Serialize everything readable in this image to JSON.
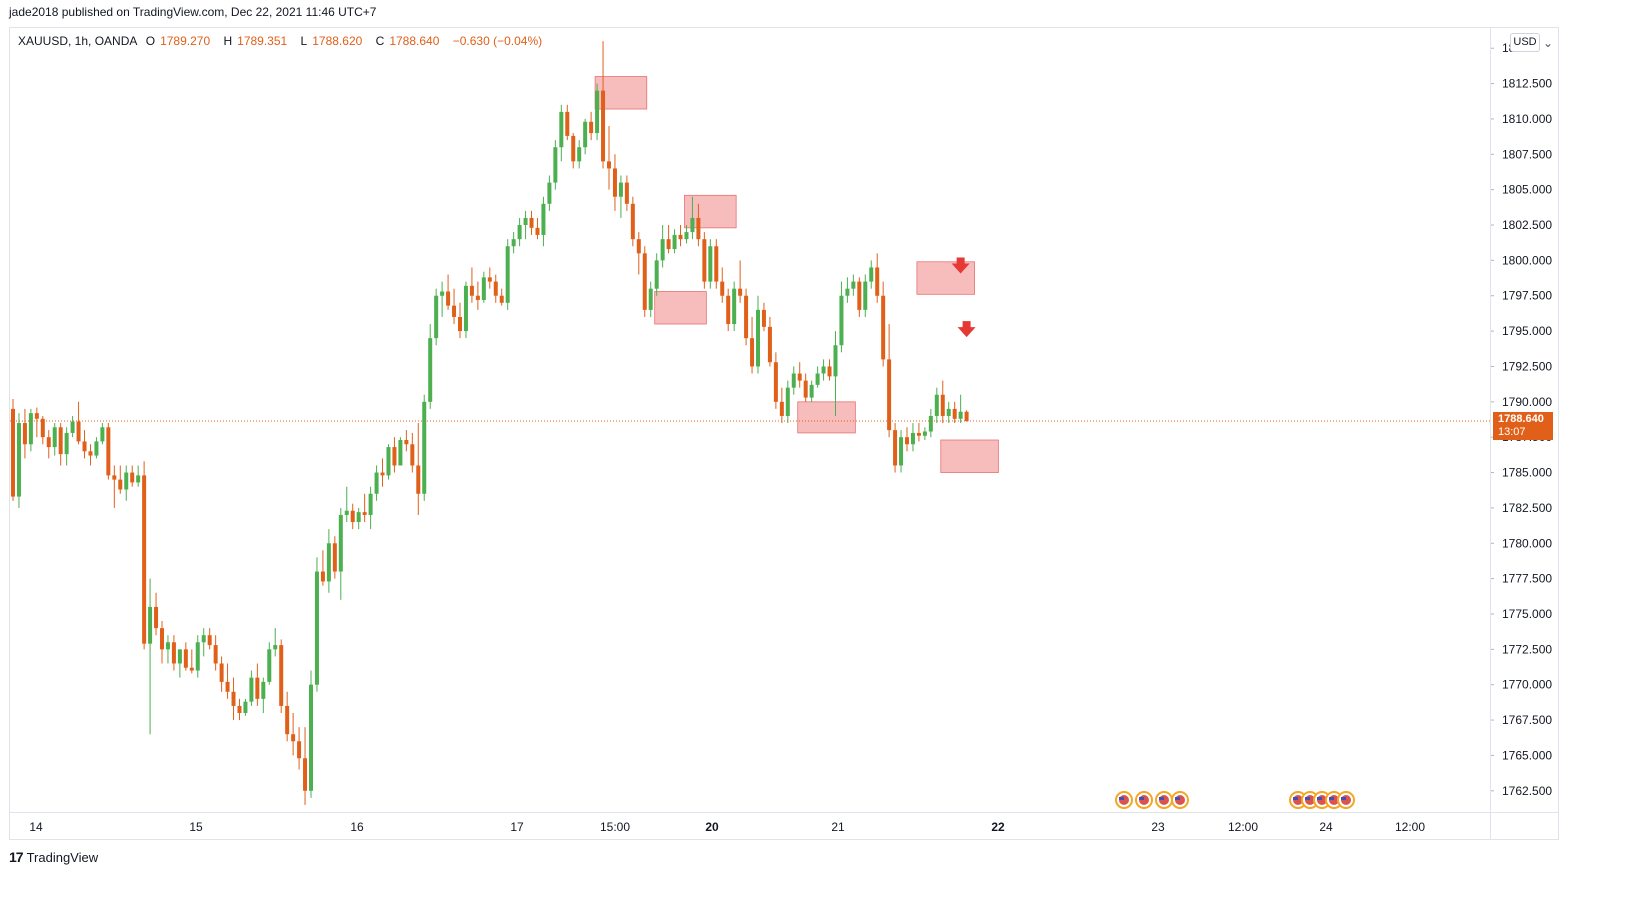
{
  "header": {
    "published": "jade2018 published on TradingView.com, Dec 22, 2021 11:46 UTC+7"
  },
  "legend": {
    "symbol": "XAUUSD, 1h, OANDA",
    "o_label": "O",
    "o_value": "1789.270",
    "h_label": "H",
    "h_value": "1789.351",
    "l_label": "L",
    "l_value": "1788.620",
    "c_label": "C",
    "c_value": "1788.640",
    "change": "−0.630 (−0.04%)"
  },
  "price_axis": {
    "currency": "USD",
    "last_price": "1788.640",
    "countdown": "13:07",
    "ticks": [
      "1762.500",
      "1765.000",
      "1767.500",
      "1770.000",
      "1772.500",
      "1775.000",
      "1777.500",
      "1780.000",
      "1782.500",
      "1785.000",
      "1787.500",
      "1790.000",
      "1792.500",
      "1795.000",
      "1797.500",
      "1800.000",
      "1802.500",
      "1805.000",
      "1807.500",
      "1810.000",
      "1812.500",
      "18"
    ]
  },
  "time_axis": {
    "ticks": [
      {
        "label": "14",
        "bold": false
      },
      {
        "label": "15",
        "bold": false
      },
      {
        "label": "16",
        "bold": false
      },
      {
        "label": "17",
        "bold": false
      },
      {
        "label": "15:00",
        "bold": false
      },
      {
        "label": "20",
        "bold": true
      },
      {
        "label": "21",
        "bold": false
      },
      {
        "label": "22",
        "bold": true
      },
      {
        "label": "23",
        "bold": false
      },
      {
        "label": "12:00",
        "bold": false
      },
      {
        "label": "24",
        "bold": false
      },
      {
        "label": "12:00",
        "bold": false
      }
    ]
  },
  "footer": {
    "brand": "TradingView",
    "logo_text": "17"
  },
  "colors": {
    "up": "#4caf50",
    "down": "#e0601a",
    "zone": "#f4a6a6",
    "zone_border": "#e57373",
    "arrow": "#e53935",
    "price_line": "#e0601a"
  },
  "chart_data": {
    "type": "candlestick",
    "symbol": "XAUUSD",
    "timeframe": "1h",
    "ylim": [
      1761.0,
      1816.5
    ],
    "candles": [
      [
        1789.5,
        1790.2,
        1783.0,
        1783.3
      ],
      [
        1783.3,
        1789.2,
        1782.5,
        1788.5
      ],
      [
        1788.5,
        1789.5,
        1786.0,
        1787.0
      ],
      [
        1787.0,
        1789.5,
        1786.5,
        1789.2
      ],
      [
        1789.2,
        1789.6,
        1787.5,
        1788.8
      ],
      [
        1788.8,
        1789.0,
        1787.0,
        1787.5
      ],
      [
        1787.5,
        1788.0,
        1786.0,
        1786.8
      ],
      [
        1786.8,
        1788.5,
        1786.2,
        1788.2
      ],
      [
        1788.2,
        1788.5,
        1785.5,
        1786.3
      ],
      [
        1786.3,
        1788.2,
        1785.5,
        1787.8
      ],
      [
        1787.8,
        1789.0,
        1787.5,
        1788.6
      ],
      [
        1788.6,
        1790.0,
        1787.0,
        1787.2
      ],
      [
        1787.2,
        1788.0,
        1786.0,
        1786.5
      ],
      [
        1786.5,
        1787.0,
        1785.5,
        1786.2
      ],
      [
        1786.2,
        1787.5,
        1786.0,
        1787.2
      ],
      [
        1787.2,
        1788.5,
        1787.0,
        1788.2
      ],
      [
        1788.2,
        1788.5,
        1784.5,
        1784.8
      ],
      [
        1784.8,
        1785.5,
        1782.5,
        1784.5
      ],
      [
        1784.5,
        1785.5,
        1783.5,
        1783.8
      ],
      [
        1783.8,
        1785.5,
        1783.0,
        1785.0
      ],
      [
        1785.0,
        1785.5,
        1784.0,
        1784.3
      ],
      [
        1784.3,
        1785.5,
        1784.0,
        1784.8
      ],
      [
        1784.8,
        1785.8,
        1772.5,
        1772.9
      ],
      [
        1772.9,
        1777.5,
        1766.5,
        1775.5
      ],
      [
        1775.5,
        1776.5,
        1773.5,
        1774.0
      ],
      [
        1774.0,
        1774.5,
        1771.5,
        1772.5
      ],
      [
        1772.5,
        1773.5,
        1771.5,
        1773.0
      ],
      [
        1773.0,
        1773.5,
        1771.0,
        1771.5
      ],
      [
        1771.5,
        1772.5,
        1770.5,
        1772.5
      ],
      [
        1772.5,
        1773.0,
        1771.0,
        1771.2
      ],
      [
        1771.2,
        1772.5,
        1770.8,
        1771.0
      ],
      [
        1771.0,
        1773.5,
        1770.5,
        1773.0
      ],
      [
        1773.0,
        1774.0,
        1772.0,
        1773.5
      ],
      [
        1773.5,
        1774.0,
        1772.5,
        1772.8
      ],
      [
        1772.8,
        1773.5,
        1771.0,
        1771.5
      ],
      [
        1771.5,
        1772.0,
        1769.5,
        1770.2
      ],
      [
        1770.2,
        1771.5,
        1769.0,
        1769.5
      ],
      [
        1769.5,
        1770.5,
        1767.5,
        1768.5
      ],
      [
        1768.5,
        1769.0,
        1767.5,
        1768.0
      ],
      [
        1768.0,
        1769.0,
        1767.8,
        1768.8
      ],
      [
        1768.8,
        1771.0,
        1768.5,
        1770.5
      ],
      [
        1770.5,
        1771.5,
        1768.5,
        1769.0
      ],
      [
        1769.0,
        1770.5,
        1768.0,
        1770.2
      ],
      [
        1770.2,
        1773.0,
        1770.0,
        1772.5
      ],
      [
        1772.5,
        1774.0,
        1772.0,
        1772.8
      ],
      [
        1772.8,
        1773.2,
        1768.0,
        1768.5
      ],
      [
        1768.5,
        1769.5,
        1766.0,
        1766.5
      ],
      [
        1766.5,
        1768.0,
        1765.0,
        1766.0
      ],
      [
        1766.0,
        1767.0,
        1764.0,
        1764.8
      ],
      [
        1764.8,
        1767.0,
        1761.5,
        1762.5
      ],
      [
        1762.5,
        1771.0,
        1762.0,
        1770.0
      ],
      [
        1770.0,
        1779.0,
        1769.5,
        1778.0
      ],
      [
        1778.0,
        1779.5,
        1777.0,
        1777.3
      ],
      [
        1777.3,
        1781.0,
        1776.5,
        1780.0
      ],
      [
        1780.0,
        1780.5,
        1777.5,
        1778.0
      ],
      [
        1778.0,
        1782.5,
        1776.0,
        1782.0
      ],
      [
        1782.0,
        1784.0,
        1781.5,
        1782.3
      ],
      [
        1782.3,
        1782.8,
        1781.0,
        1781.5
      ],
      [
        1781.5,
        1782.5,
        1781.0,
        1782.2
      ],
      [
        1782.2,
        1783.5,
        1781.5,
        1782.0
      ],
      [
        1782.0,
        1784.0,
        1781.0,
        1783.5
      ],
      [
        1783.5,
        1785.5,
        1783.0,
        1785.0
      ],
      [
        1785.0,
        1786.0,
        1784.0,
        1784.8
      ],
      [
        1784.8,
        1787.0,
        1784.5,
        1786.8
      ],
      [
        1786.8,
        1787.5,
        1785.0,
        1785.5
      ],
      [
        1785.5,
        1787.5,
        1785.5,
        1787.3
      ],
      [
        1787.3,
        1788.0,
        1786.5,
        1787.0
      ],
      [
        1787.0,
        1787.8,
        1785.0,
        1785.5
      ],
      [
        1785.5,
        1788.5,
        1782.0,
        1783.5
      ],
      [
        1783.5,
        1790.5,
        1783.0,
        1790.0
      ],
      [
        1790.0,
        1795.5,
        1789.5,
        1794.5
      ],
      [
        1794.5,
        1798.0,
        1794.0,
        1797.5
      ],
      [
        1797.5,
        1798.5,
        1796.0,
        1797.8
      ],
      [
        1797.8,
        1799.0,
        1796.5,
        1796.8
      ],
      [
        1796.8,
        1798.0,
        1795.5,
        1796.0
      ],
      [
        1796.0,
        1797.0,
        1794.5,
        1795.0
      ],
      [
        1795.0,
        1798.5,
        1794.5,
        1798.2
      ],
      [
        1798.2,
        1799.5,
        1797.0,
        1797.5
      ],
      [
        1797.5,
        1798.5,
        1796.5,
        1797.2
      ],
      [
        1797.2,
        1799.2,
        1797.0,
        1798.8
      ],
      [
        1798.8,
        1799.5,
        1798.0,
        1798.5
      ],
      [
        1798.5,
        1799.0,
        1797.0,
        1797.5
      ],
      [
        1797.5,
        1798.0,
        1796.8,
        1797.0
      ],
      [
        1797.0,
        1801.5,
        1796.5,
        1801.0
      ],
      [
        1801.0,
        1802.0,
        1800.5,
        1801.5
      ],
      [
        1801.5,
        1803.0,
        1801.0,
        1802.5
      ],
      [
        1802.5,
        1803.5,
        1801.5,
        1803.0
      ],
      [
        1803.0,
        1803.5,
        1801.8,
        1802.3
      ],
      [
        1802.3,
        1803.0,
        1801.5,
        1801.8
      ],
      [
        1801.8,
        1804.5,
        1801.0,
        1804.0
      ],
      [
        1804.0,
        1806.0,
        1803.5,
        1805.5
      ],
      [
        1805.5,
        1808.5,
        1805.0,
        1808.0
      ],
      [
        1808.0,
        1811.0,
        1807.0,
        1810.5
      ],
      [
        1810.5,
        1811.0,
        1808.5,
        1808.8
      ],
      [
        1808.8,
        1809.0,
        1806.5,
        1807.0
      ],
      [
        1807.0,
        1808.5,
        1806.5,
        1808.0
      ],
      [
        1808.0,
        1810.0,
        1807.5,
        1809.8
      ],
      [
        1809.8,
        1810.5,
        1808.5,
        1809.0
      ],
      [
        1809.0,
        1812.5,
        1808.5,
        1812.0
      ],
      [
        1812.0,
        1815.5,
        1806.5,
        1807.0
      ],
      [
        1807.0,
        1809.5,
        1805.0,
        1806.5
      ],
      [
        1806.5,
        1807.5,
        1803.5,
        1804.5
      ],
      [
        1804.5,
        1806.0,
        1803.0,
        1805.5
      ],
      [
        1805.5,
        1806.0,
        1803.5,
        1804.0
      ],
      [
        1804.0,
        1804.5,
        1801.0,
        1801.5
      ],
      [
        1801.5,
        1802.0,
        1799.0,
        1800.5
      ],
      [
        1800.5,
        1801.0,
        1796.0,
        1796.5
      ],
      [
        1796.5,
        1798.5,
        1796.0,
        1798.0
      ],
      [
        1798.0,
        1800.5,
        1797.5,
        1800.0
      ],
      [
        1800.0,
        1802.5,
        1799.5,
        1801.5
      ],
      [
        1801.5,
        1802.5,
        1800.5,
        1800.8
      ],
      [
        1800.8,
        1802.2,
        1800.5,
        1801.8
      ],
      [
        1801.8,
        1802.5,
        1801.0,
        1801.5
      ],
      [
        1801.5,
        1802.5,
        1801.2,
        1802.0
      ],
      [
        1802.0,
        1804.5,
        1801.5,
        1803.0
      ],
      [
        1803.0,
        1804.0,
        1801.0,
        1801.5
      ],
      [
        1801.5,
        1802.0,
        1798.0,
        1798.5
      ],
      [
        1798.5,
        1801.5,
        1798.0,
        1801.0
      ],
      [
        1801.0,
        1801.5,
        1798.0,
        1798.5
      ],
      [
        1798.5,
        1799.5,
        1797.0,
        1797.5
      ],
      [
        1797.5,
        1798.0,
        1795.0,
        1795.5
      ],
      [
        1795.5,
        1798.5,
        1795.0,
        1798.0
      ],
      [
        1798.0,
        1800.0,
        1797.0,
        1797.5
      ],
      [
        1797.5,
        1798.0,
        1794.0,
        1794.5
      ],
      [
        1794.5,
        1796.0,
        1792.0,
        1792.5
      ],
      [
        1792.5,
        1797.5,
        1792.0,
        1796.5
      ],
      [
        1796.5,
        1797.0,
        1795.0,
        1795.3
      ],
      [
        1795.3,
        1796.0,
        1792.5,
        1792.8
      ],
      [
        1792.8,
        1793.5,
        1789.5,
        1790.0
      ],
      [
        1790.0,
        1791.0,
        1788.5,
        1789.0
      ],
      [
        1789.0,
        1791.5,
        1788.5,
        1791.0
      ],
      [
        1791.0,
        1792.5,
        1790.5,
        1792.0
      ],
      [
        1792.0,
        1792.8,
        1791.0,
        1791.5
      ],
      [
        1791.5,
        1792.0,
        1790.0,
        1790.3
      ],
      [
        1790.3,
        1791.5,
        1790.0,
        1791.2
      ],
      [
        1791.2,
        1792.5,
        1791.0,
        1792.0
      ],
      [
        1792.0,
        1793.0,
        1791.5,
        1792.5
      ],
      [
        1792.5,
        1793.0,
        1791.5,
        1791.8
      ],
      [
        1791.8,
        1795.0,
        1789.0,
        1794.0
      ],
      [
        1794.0,
        1798.5,
        1793.5,
        1797.5
      ],
      [
        1797.5,
        1798.8,
        1797.0,
        1798.0
      ],
      [
        1798.0,
        1799.0,
        1797.5,
        1798.5
      ],
      [
        1798.5,
        1798.8,
        1796.0,
        1796.5
      ],
      [
        1796.5,
        1799.0,
        1796.0,
        1798.5
      ],
      [
        1798.5,
        1800.0,
        1798.0,
        1799.5
      ],
      [
        1799.5,
        1800.5,
        1797.0,
        1797.5
      ],
      [
        1797.5,
        1798.5,
        1792.5,
        1793.0
      ],
      [
        1793.0,
        1795.5,
        1787.5,
        1788.0
      ],
      [
        1788.0,
        1788.5,
        1785.0,
        1785.5
      ],
      [
        1785.5,
        1788.0,
        1785.0,
        1787.5
      ],
      [
        1787.5,
        1788.2,
        1786.5,
        1787.0
      ],
      [
        1787.0,
        1788.5,
        1786.5,
        1787.8
      ],
      [
        1787.8,
        1788.5,
        1787.2,
        1787.6
      ],
      [
        1787.6,
        1788.2,
        1787.3,
        1787.9
      ],
      [
        1787.9,
        1789.5,
        1787.5,
        1789.0
      ],
      [
        1789.0,
        1791.0,
        1788.5,
        1790.5
      ],
      [
        1790.5,
        1791.5,
        1788.5,
        1789.0
      ],
      [
        1789.0,
        1790.0,
        1788.5,
        1789.5
      ],
      [
        1789.5,
        1790.0,
        1788.5,
        1788.8
      ],
      [
        1788.8,
        1790.5,
        1788.5,
        1789.3
      ],
      [
        1789.3,
        1789.4,
        1788.6,
        1788.64
      ]
    ],
    "zones": [
      {
        "from_index": 98,
        "to_index": 106,
        "low": 1810.7,
        "high": 1813.0
      },
      {
        "from_index": 113,
        "to_index": 121,
        "low": 1802.3,
        "high": 1804.6
      },
      {
        "from_index": 108,
        "to_index": 116,
        "low": 1795.5,
        "high": 1797.8
      },
      {
        "from_index": 152,
        "to_index": 161,
        "low": 1797.6,
        "high": 1799.9
      },
      {
        "from_index": 132,
        "to_index": 141,
        "low": 1787.8,
        "high": 1790.0
      },
      {
        "from_index": 156,
        "to_index": 165,
        "low": 1785.0,
        "high": 1787.3
      }
    ],
    "arrows": [
      {
        "index": 159,
        "price": 1799.5,
        "direction": "down"
      },
      {
        "index": 160,
        "price": 1795.0,
        "direction": "down"
      }
    ],
    "last_price": 1788.64
  }
}
